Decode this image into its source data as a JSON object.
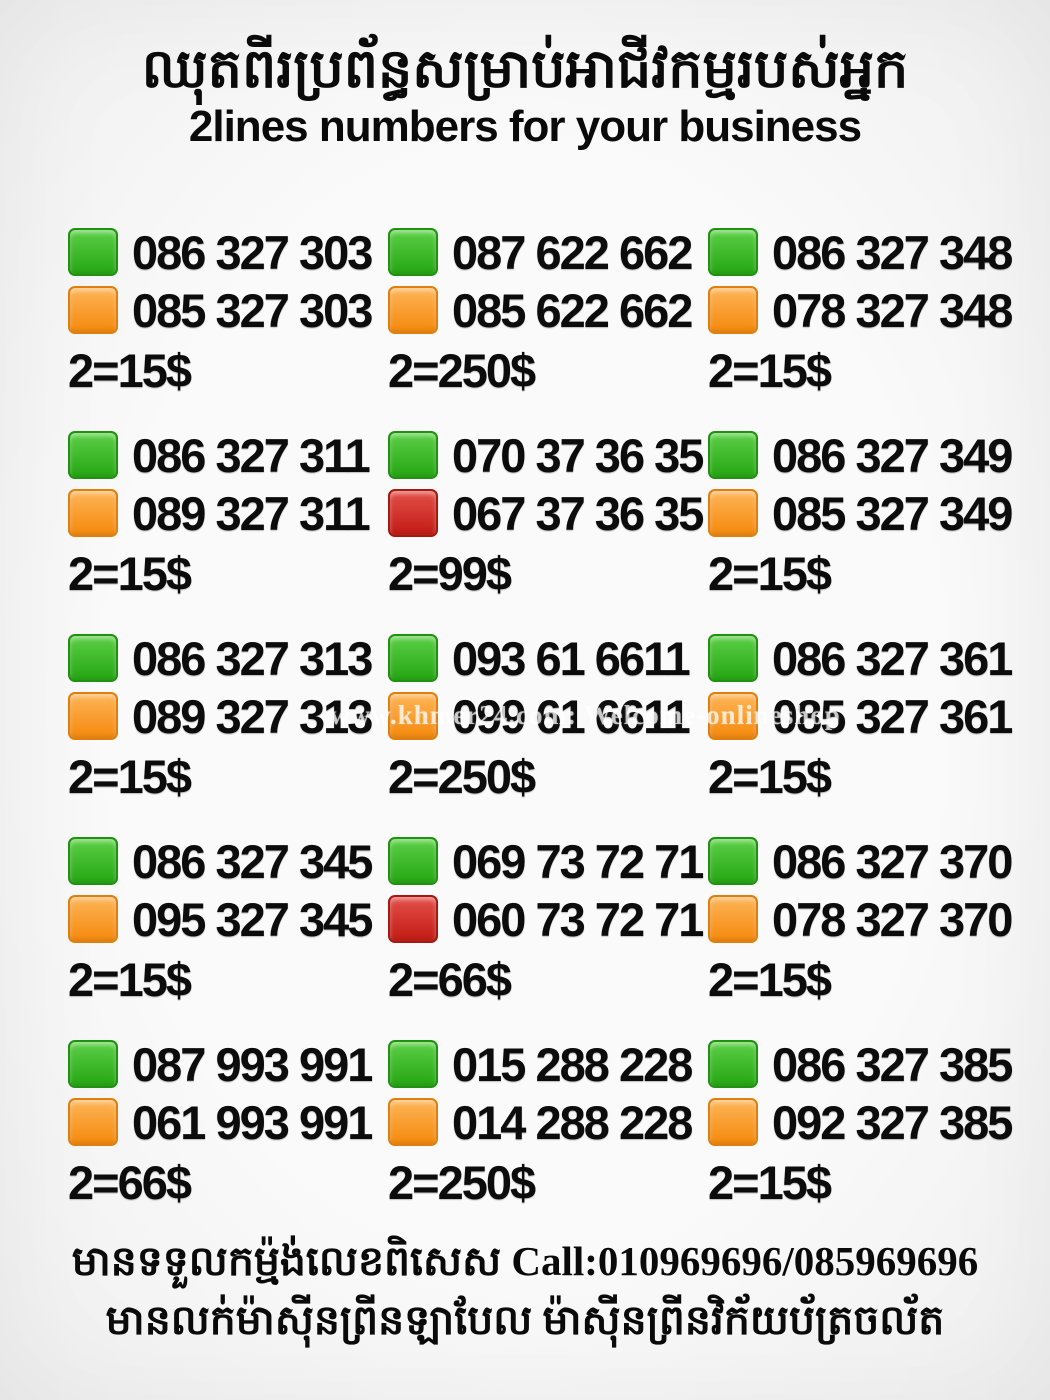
{
  "header": {
    "title_khmer": "ឈុតពីរប្រព័ន្ធសម្រាប់អាជីវកម្មរបស់អ្នក",
    "subtitle": "2lines numbers for your business"
  },
  "cards": [
    {
      "line1": {
        "color": "green",
        "number": "086 327 303"
      },
      "line2": {
        "color": "orange",
        "number": "085 327 303"
      },
      "price": "2=15$"
    },
    {
      "line1": {
        "color": "green",
        "number": "087 622 662"
      },
      "line2": {
        "color": "orange",
        "number": "085 622 662"
      },
      "price": "2=250$"
    },
    {
      "line1": {
        "color": "green",
        "number": "086 327 348"
      },
      "line2": {
        "color": "orange",
        "number": "078 327 348"
      },
      "price": "2=15$"
    },
    {
      "line1": {
        "color": "green",
        "number": "086 327 311"
      },
      "line2": {
        "color": "orange",
        "number": "089 327 311"
      },
      "price": "2=15$"
    },
    {
      "line1": {
        "color": "green",
        "number": "070 37 36 35"
      },
      "line2": {
        "color": "red",
        "number": "067 37 36 35"
      },
      "price": "2=99$"
    },
    {
      "line1": {
        "color": "green",
        "number": "086 327 349"
      },
      "line2": {
        "color": "orange",
        "number": "085 327 349"
      },
      "price": "2=15$"
    },
    {
      "line1": {
        "color": "green",
        "number": "086 327 313"
      },
      "line2": {
        "color": "orange",
        "number": "089 327 313"
      },
      "price": "2=15$"
    },
    {
      "line1": {
        "color": "green",
        "number": "093 61 6611"
      },
      "line2": {
        "color": "orange",
        "number": "099 61 6611"
      },
      "price": "2=250$"
    },
    {
      "line1": {
        "color": "green",
        "number": "086 327 361"
      },
      "line2": {
        "color": "orange",
        "number": "085 327 361"
      },
      "price": "2=15$"
    },
    {
      "line1": {
        "color": "green",
        "number": "086 327 345"
      },
      "line2": {
        "color": "orange",
        "number": "095 327 345"
      },
      "price": "2=15$"
    },
    {
      "line1": {
        "color": "green",
        "number": "069 73 72 71"
      },
      "line2": {
        "color": "red",
        "number": "060 73 72 71"
      },
      "price": "2=66$"
    },
    {
      "line1": {
        "color": "green",
        "number": "086 327 370"
      },
      "line2": {
        "color": "orange",
        "number": "078 327 370"
      },
      "price": "2=15$"
    },
    {
      "line1": {
        "color": "green",
        "number": "087 993 991"
      },
      "line2": {
        "color": "orange",
        "number": "061 993 991"
      },
      "price": "2=66$"
    },
    {
      "line1": {
        "color": "green",
        "number": "015 288 228"
      },
      "line2": {
        "color": "orange",
        "number": "014 288 228"
      },
      "price": "2=250$"
    },
    {
      "line1": {
        "color": "green",
        "number": "086 327 385"
      },
      "line2": {
        "color": "orange",
        "number": "092 327 385"
      },
      "price": "2=15$"
    }
  ],
  "watermark": "www.khmer24.com: Welcome-onlineshop",
  "footer": {
    "line1": "មានទទួលកម្ម៉ង់លេខពិសេស Call:010969696/085969696",
    "line2": "មានលក់ម៉ាស៊ីនព្រីនឡាបែល ម៉ាស៊ីនព្រីនវិក័យប័ត្រចល័ត"
  },
  "colors": {
    "green_square": "#2aaa17",
    "orange_square": "#f68d13",
    "red_square": "#c42019",
    "text": "#0c0c0c",
    "background": "#f5f5f5"
  }
}
